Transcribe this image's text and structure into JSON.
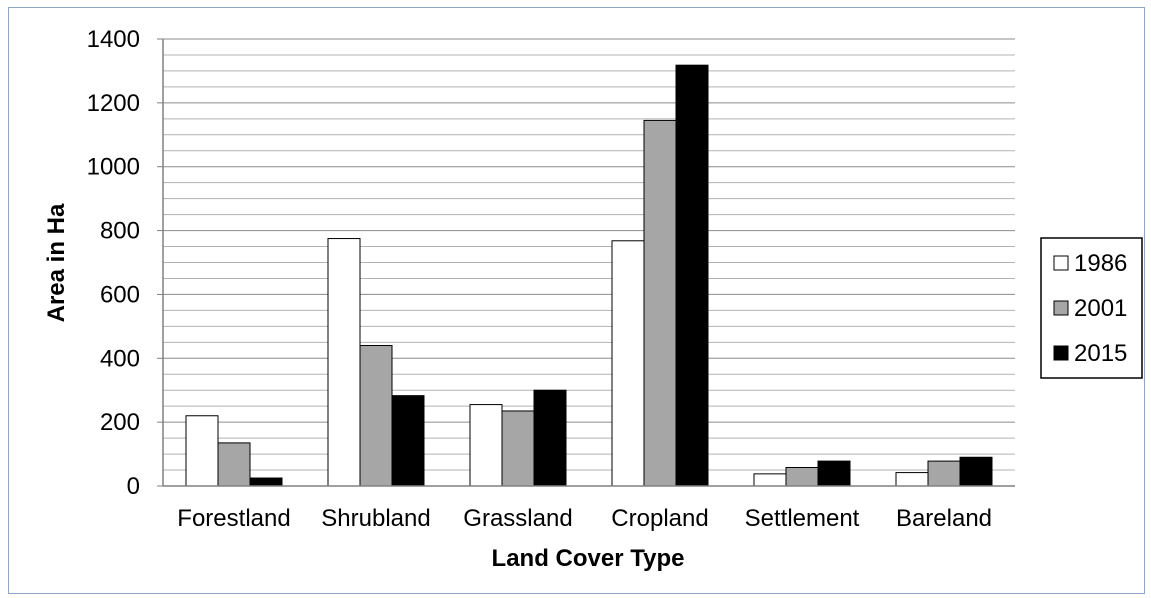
{
  "chart_data": {
    "type": "bar",
    "title": "",
    "xlabel": "Land Cover Type",
    "ylabel": "Area in Ha",
    "ylim": [
      0,
      1400
    ],
    "yticks": [
      "0",
      "200",
      "400",
      "600",
      "800",
      "1000",
      "1200",
      "1400"
    ],
    "grid": true,
    "legend_position": "right",
    "categories": [
      "Forestland",
      "Shrubland",
      "Grassland",
      "Cropland",
      "Settlement",
      "Bareland"
    ],
    "series": [
      {
        "name": "1986",
        "color": "#ffffff",
        "values": [
          220,
          775,
          255,
          768,
          38,
          42
        ]
      },
      {
        "name": "2001",
        "color": "#a6a6a6",
        "values": [
          135,
          440,
          235,
          1145,
          58,
          78
        ]
      },
      {
        "name": "2015",
        "color": "#000000",
        "values": [
          25,
          283,
          300,
          1318,
          78,
          90
        ]
      }
    ]
  }
}
